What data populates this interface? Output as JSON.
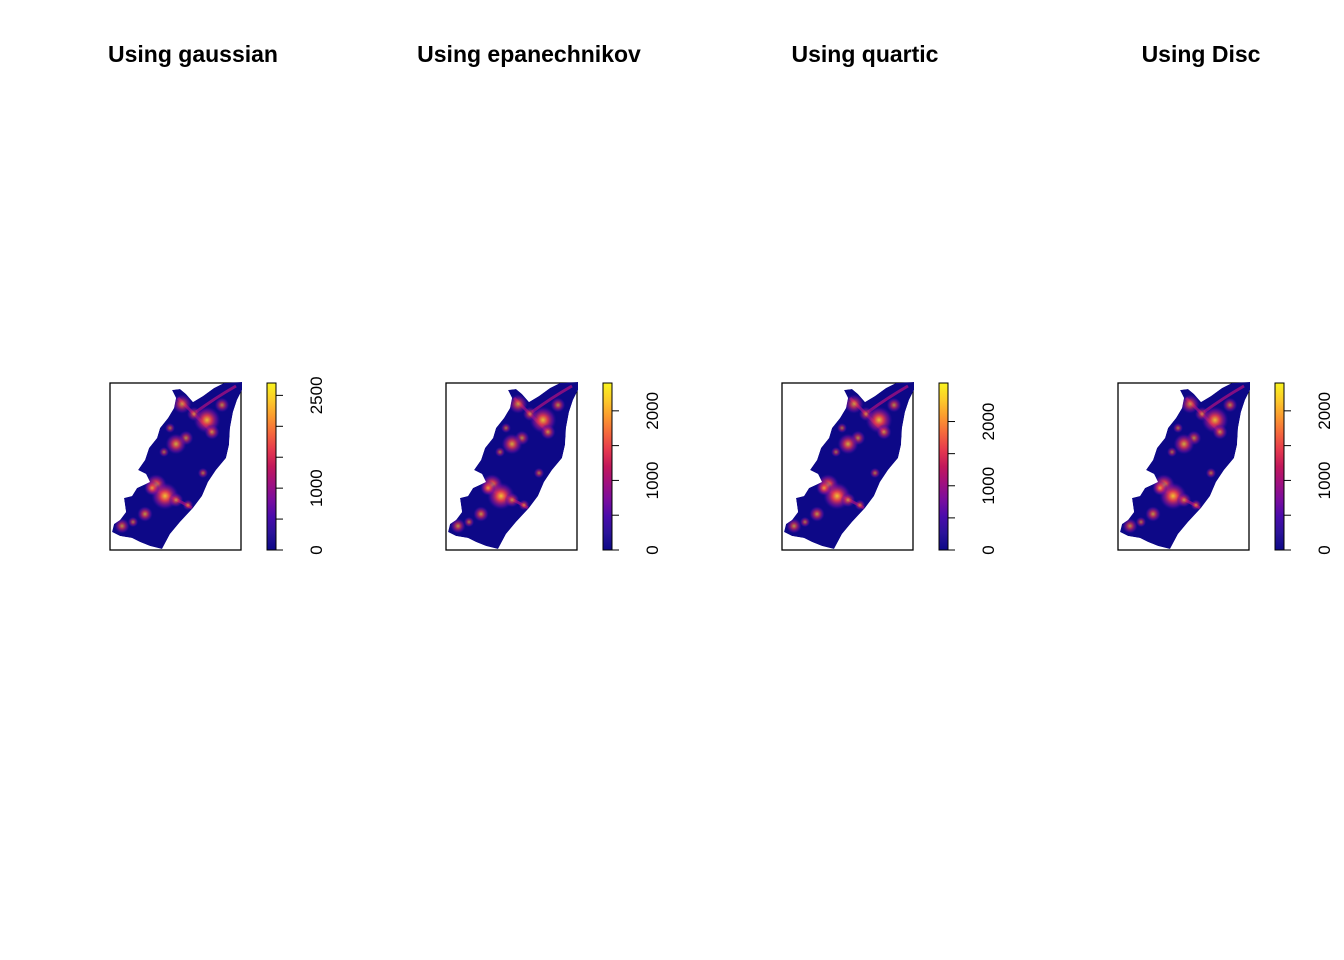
{
  "chart_data": [
    {
      "type": "heatmap",
      "title": "Using gaussian",
      "colorbar": {
        "ticks": [
          0,
          500,
          1000,
          1500,
          2000,
          2500
        ],
        "tick_labels": [
          "0",
          "1000",
          "2500"
        ],
        "max": 2700
      },
      "palette": [
        "#0d0887",
        "#2a1399",
        "#4a0cab",
        "#7a0d9e",
        "#a0107f",
        "#c2185b",
        "#e6394e",
        "#f5683c",
        "#fb9a2f",
        "#fccb2a",
        "#f9f41e"
      ]
    },
    {
      "type": "heatmap",
      "title": "Using epanechnikov",
      "colorbar": {
        "ticks": [
          0,
          500,
          1000,
          1500,
          2000
        ],
        "tick_labels": [
          "0",
          "1000",
          "2000"
        ],
        "max": 2400
      },
      "palette": [
        "#0d0887",
        "#2a1399",
        "#4a0cab",
        "#7a0d9e",
        "#a0107f",
        "#c2185b",
        "#e6394e",
        "#f5683c",
        "#fb9a2f",
        "#fccb2a",
        "#f9f41e"
      ]
    },
    {
      "type": "heatmap",
      "title": "Using quartic",
      "colorbar": {
        "ticks": [
          0,
          500,
          1000,
          1500,
          2000
        ],
        "tick_labels": [
          "0",
          "1000",
          "2000"
        ],
        "max": 2600
      },
      "palette": [
        "#0d0887",
        "#2a1399",
        "#4a0cab",
        "#7a0d9e",
        "#a0107f",
        "#c2185b",
        "#e6394e",
        "#f5683c",
        "#fb9a2f",
        "#fccb2a",
        "#f9f41e"
      ]
    },
    {
      "type": "heatmap",
      "title": "Using Disc",
      "colorbar": {
        "ticks": [
          0,
          500,
          1000,
          1500,
          2000
        ],
        "tick_labels": [
          "0",
          "1000",
          "2000"
        ],
        "max": 2400
      },
      "palette": [
        "#0d0887",
        "#2a1399",
        "#4a0cab",
        "#7a0d9e",
        "#a0107f",
        "#c2185b",
        "#e6394e",
        "#f5683c",
        "#fb9a2f",
        "#fccb2a",
        "#f9f41e"
      ]
    }
  ]
}
